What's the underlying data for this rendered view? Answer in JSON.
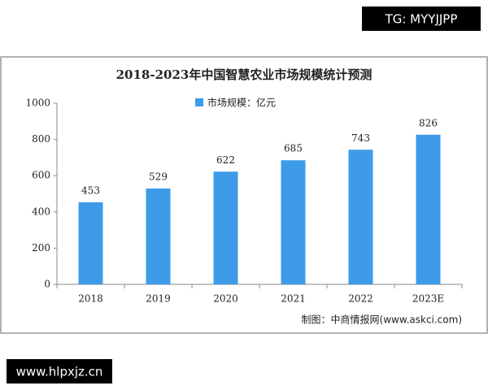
{
  "chart_data": {
    "type": "bar",
    "title": "2018-2023年中国智慧农业市场规模统计预测",
    "categories": [
      "2018",
      "2019",
      "2020",
      "2021",
      "2022",
      "2023E"
    ],
    "series": [
      {
        "name": "市场规模：亿元",
        "color": "#3d9be9",
        "values": [
          453,
          529,
          622,
          685,
          743,
          826
        ]
      }
    ],
    "ylim": [
      0,
      1000
    ],
    "yticks": [
      0,
      200,
      400,
      600,
      800,
      1000
    ],
    "source": "制图：中商情报网(www.askci.com)"
  },
  "overlays": [
    "TG: MYYJJPP",
    "www.hlpxjz.cn"
  ]
}
